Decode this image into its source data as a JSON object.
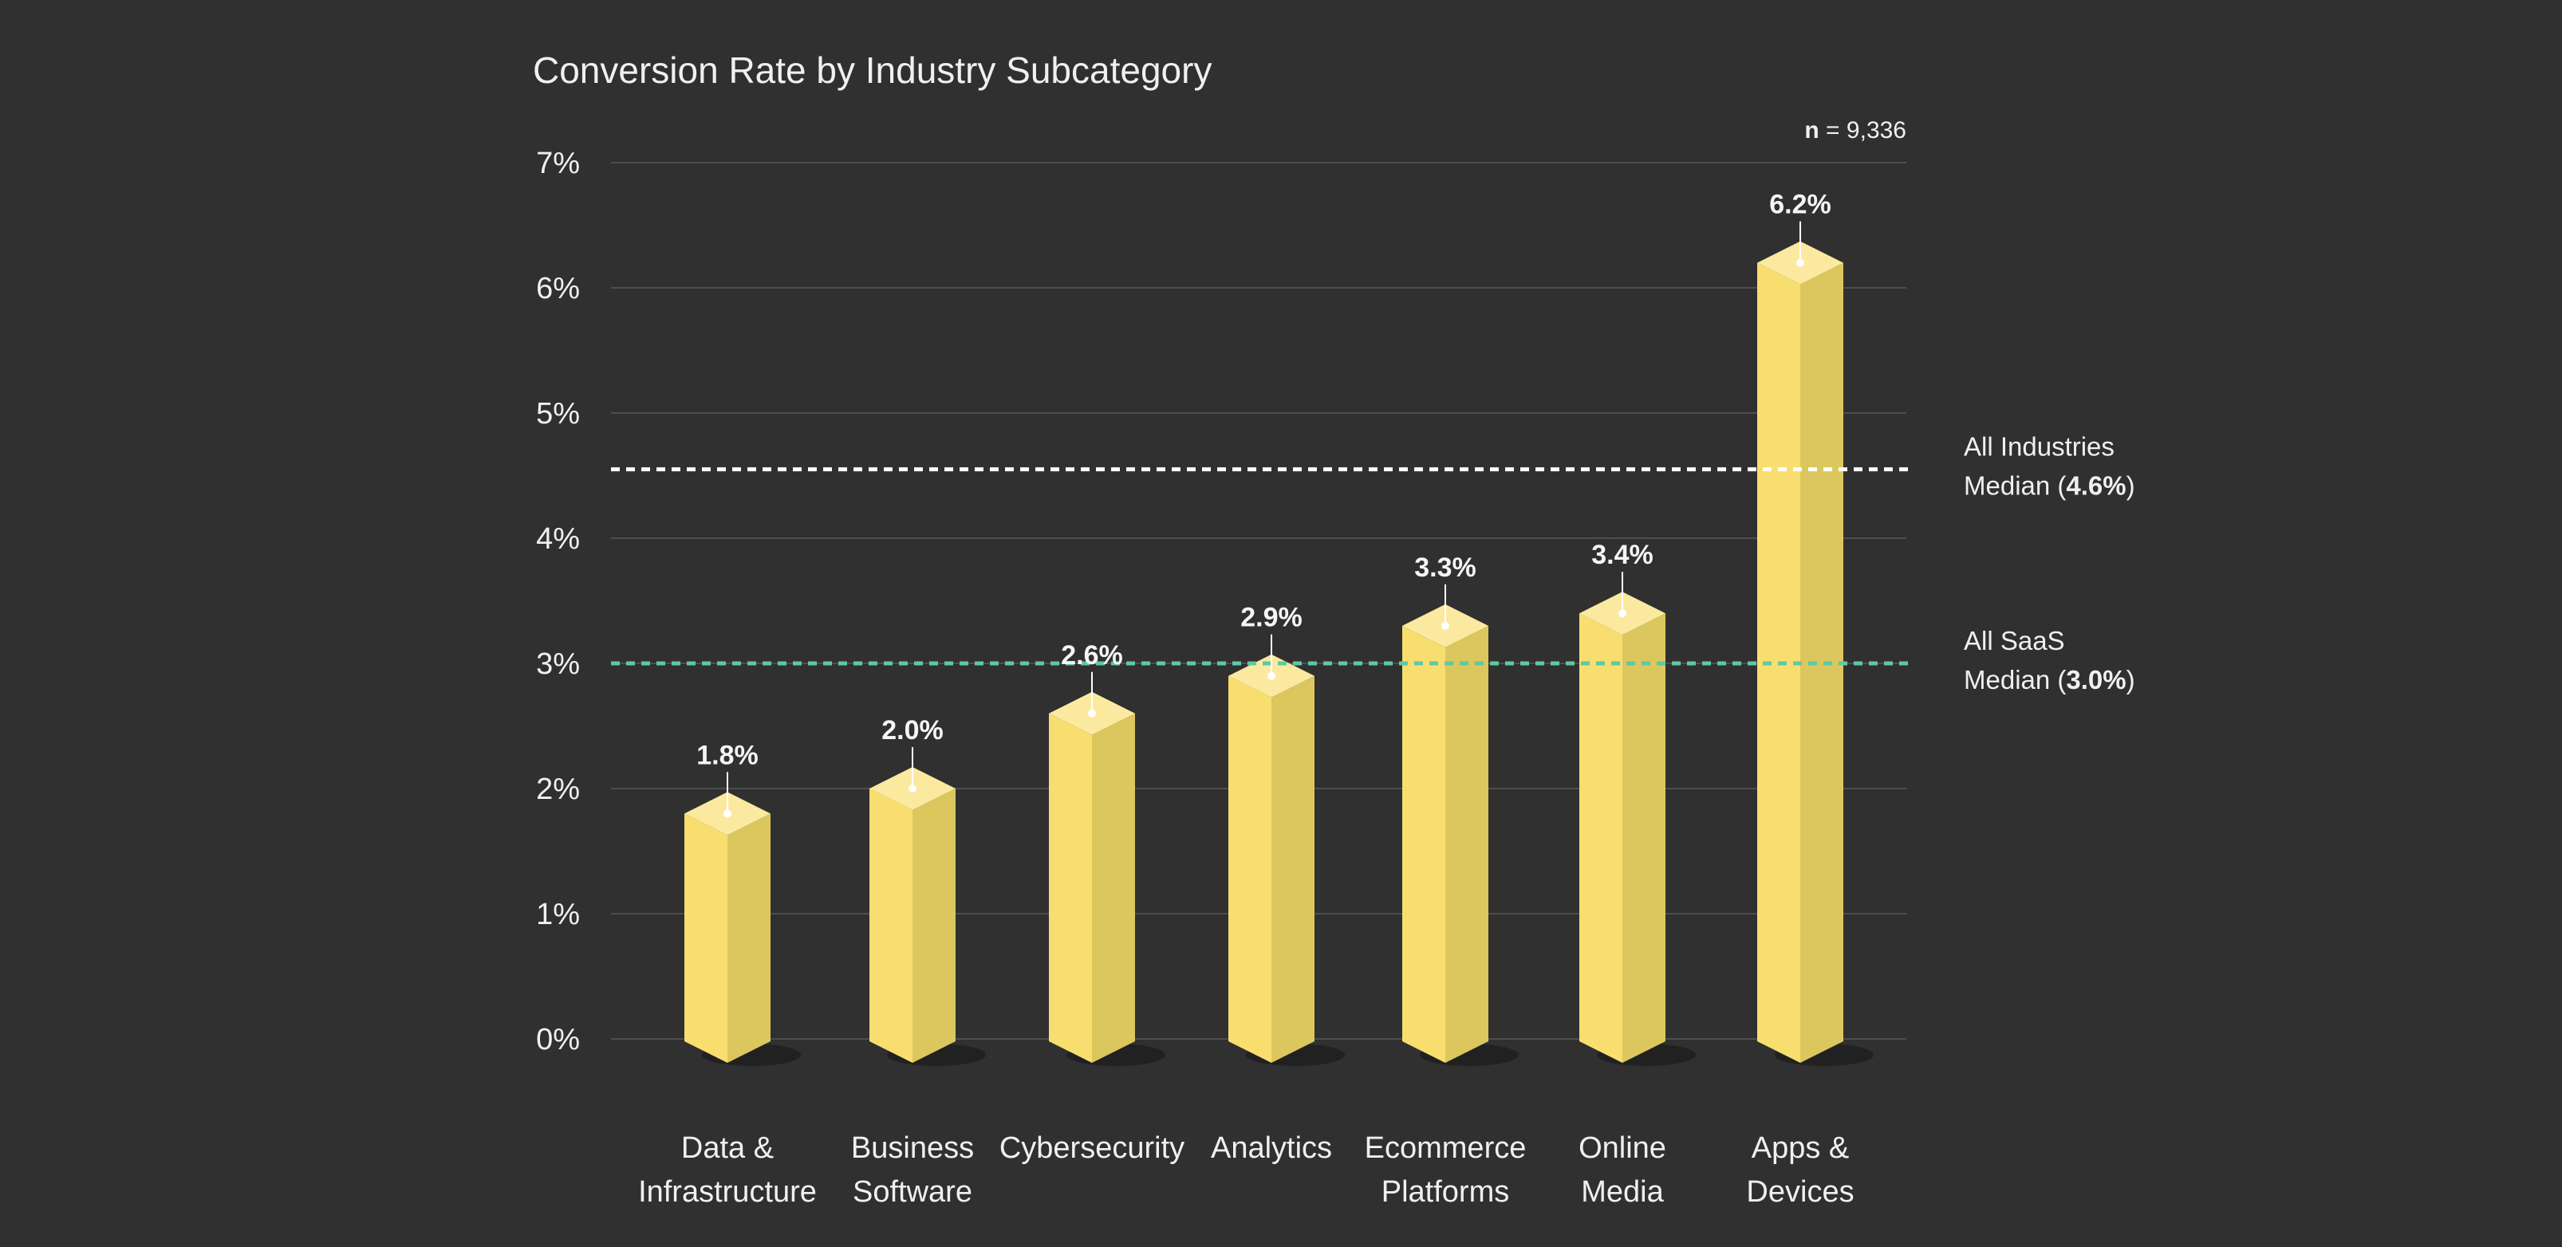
{
  "chart_data": {
    "type": "bar",
    "title": "Conversion Rate by Industry Subcategory",
    "sample_size": {
      "label": "n",
      "value": "9,336"
    },
    "xlabel": "",
    "ylabel": "",
    "ylim": [
      0,
      7
    ],
    "yticks": [
      "0%",
      "1%",
      "2%",
      "3%",
      "4%",
      "5%",
      "6%",
      "7%"
    ],
    "grid": true,
    "categories": [
      [
        "Data &",
        "Infrastructure"
      ],
      [
        "Business",
        "Software"
      ],
      [
        "Cybersecurity"
      ],
      [
        "Analytics"
      ],
      [
        "Ecommerce",
        "Platforms"
      ],
      [
        "Online",
        "Media"
      ],
      [
        "Apps &",
        "Devices"
      ]
    ],
    "values": [
      1.8,
      2.0,
      2.6,
      2.9,
      3.3,
      3.4,
      6.2
    ],
    "value_labels": [
      "1.8%",
      "2.0%",
      "2.6%",
      "2.9%",
      "3.3%",
      "3.4%",
      "6.2%"
    ],
    "reference_lines": [
      {
        "value": 4.55,
        "line1": "All Industries",
        "line2_prefix": "Median (",
        "line2_value": "4.6%",
        "line2_suffix": ")",
        "color": "#ffffff"
      },
      {
        "value": 3.0,
        "line1": "All SaaS",
        "line2_prefix": "Median (",
        "line2_value": "3.0%",
        "line2_suffix": ")",
        "color": "#5ec9a2"
      }
    ],
    "colors": {
      "background": "#303030",
      "bar_front": "#f8de6e",
      "bar_side": "#dcc65e",
      "bar_top": "#fbe9a0",
      "grid": "#4e4e4e",
      "text": "#f0f0f0"
    }
  }
}
